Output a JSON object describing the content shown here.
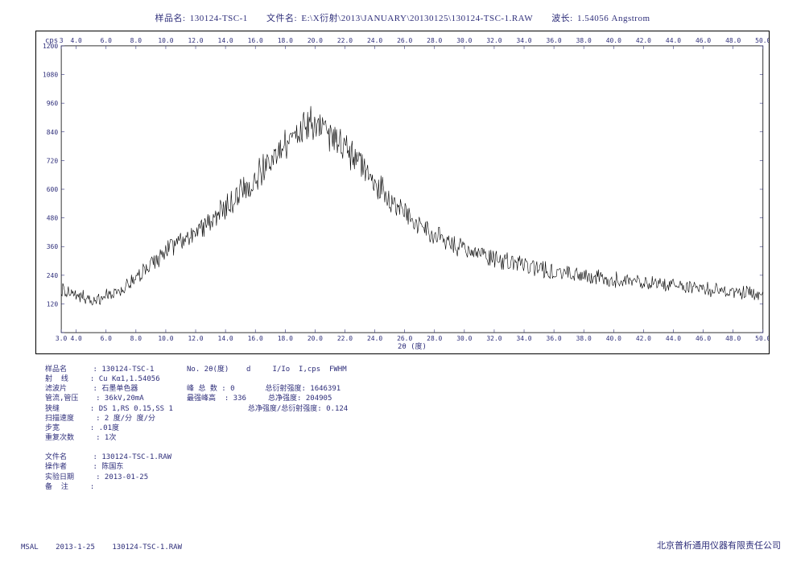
{
  "header": {
    "sample_lbl": "样品名:",
    "sample": "130124-TSC-1",
    "file_lbl": "文件名:",
    "file": "E:\\X衍射\\2013\\JANUARY\\20130125\\130124-TSC-1.RAW",
    "wave_lbl": "波长:",
    "wave": "1.54056 Angstrom"
  },
  "chart": {
    "type": "line",
    "background_color": "#ffffff",
    "frame_color": "#000000",
    "line_color": "#000000",
    "line_width": 0.6,
    "tick_color": "#2e2e7a",
    "grid_on": false,
    "cps_label": "cps",
    "x_axis_title": "2θ (度)",
    "xlim": [
      3.0,
      50.0
    ],
    "ylim": [
      0,
      1200
    ],
    "x_ticks": [
      3.0,
      4.0,
      6.0,
      8.0,
      10.0,
      12.0,
      14.0,
      16.0,
      18.0,
      20.0,
      22.0,
      24.0,
      26.0,
      28.0,
      30.0,
      32.0,
      34.0,
      36.0,
      38.0,
      40.0,
      42.0,
      44.0,
      46.0,
      48.0,
      50.0
    ],
    "x_tick_labels": [
      "3.0",
      "4.0",
      "6.0",
      "8.0",
      "10.0",
      "12.0",
      "14.0",
      "16.0",
      "18.0",
      "20.0",
      "22.0",
      "24.0",
      "26.0",
      "28.0",
      "30.0",
      "32.0",
      "34.0",
      "36.0",
      "38.0",
      "40.0",
      "42.0",
      "44.0",
      "46.0",
      "48.0",
      "50.0"
    ],
    "y_ticks": [
      0,
      120,
      240,
      360,
      480,
      600,
      720,
      840,
      960,
      1080,
      1200
    ],
    "y_tick_labels": [
      "",
      "120",
      "240",
      "360",
      "480",
      "600",
      "720",
      "840",
      "960",
      "1080",
      "1200"
    ],
    "x_ticks_top": [
      3,
      4.0,
      6.0,
      8.0,
      10.0,
      12.0,
      14.0,
      16.0,
      18.0,
      20.0,
      22.0,
      24.0,
      26.0,
      28.0,
      30.0,
      32.0,
      34.0,
      36.0,
      38.0,
      40.0,
      42.0,
      44.0,
      46.0,
      48.0,
      50.0
    ],
    "x_tick_labels_top": [
      "3",
      "4.0",
      "6.0",
      "8.0",
      "10.0",
      "12.0",
      "14.0",
      "16.0",
      "18.0",
      "20.0",
      "22.0",
      "24.0",
      "26.0",
      "28.0",
      "30.0",
      "32.0",
      "34.0",
      "36.0",
      "38.0",
      "40.0",
      "42.0",
      "44.0",
      "46.0",
      "48.0",
      "50.0"
    ],
    "baseline": [
      [
        3.0,
        180
      ],
      [
        3.5,
        160
      ],
      [
        4.0,
        150
      ],
      [
        5.0,
        140
      ],
      [
        6.0,
        150
      ],
      [
        7.0,
        180
      ],
      [
        8.0,
        220
      ],
      [
        9.0,
        280
      ],
      [
        10.0,
        340
      ],
      [
        11.0,
        380
      ],
      [
        12.0,
        420
      ],
      [
        13.0,
        470
      ],
      [
        14.0,
        520
      ],
      [
        15.0,
        580
      ],
      [
        16.0,
        650
      ],
      [
        17.0,
        720
      ],
      [
        18.0,
        790
      ],
      [
        19.0,
        840
      ],
      [
        19.5,
        860
      ],
      [
        20.0,
        870
      ],
      [
        20.5,
        860
      ],
      [
        21.0,
        830
      ],
      [
        22.0,
        770
      ],
      [
        23.0,
        700
      ],
      [
        24.0,
        630
      ],
      [
        25.0,
        560
      ],
      [
        26.0,
        500
      ],
      [
        27.0,
        450
      ],
      [
        28.0,
        410
      ],
      [
        29.0,
        380
      ],
      [
        30.0,
        350
      ],
      [
        31.0,
        330
      ],
      [
        32.0,
        310
      ],
      [
        33.0,
        295
      ],
      [
        34.0,
        280
      ],
      [
        35.0,
        268
      ],
      [
        36.0,
        255
      ],
      [
        37.0,
        245
      ],
      [
        38.0,
        235
      ],
      [
        39.0,
        228
      ],
      [
        40.0,
        220
      ],
      [
        41.0,
        214
      ],
      [
        42.0,
        208
      ],
      [
        43.0,
        202
      ],
      [
        44.0,
        196
      ],
      [
        45.0,
        190
      ],
      [
        46.0,
        184
      ],
      [
        47.0,
        178
      ],
      [
        48.0,
        172
      ],
      [
        49.0,
        165
      ],
      [
        50.0,
        158
      ]
    ],
    "noise_amplitude": 95,
    "noise_min": 35,
    "noise_secondary": 0.35,
    "samples_per_step": 18
  },
  "meta_left": [
    [
      "样品名",
      "130124-TSC-1"
    ],
    [
      "射  线",
      "Cu Kα1,1.54056"
    ],
    [
      "滤波片",
      "石墨单色器"
    ],
    [
      "管流,管压",
      "36kV,20mA"
    ],
    [
      "狭缝",
      "DS 1,RS 0.15,SS 1"
    ],
    [
      "扫描速度",
      "2 度/分 度/分"
    ],
    [
      "步宽",
      ".01度"
    ],
    [
      "重复次数",
      "1次"
    ],
    [
      "",
      ""
    ],
    [
      "文件名",
      "130124-TSC-1.RAW"
    ],
    [
      "操作者",
      "陈国东"
    ],
    [
      "实验日期",
      "2013-01-25"
    ],
    [
      "备  注",
      ""
    ]
  ],
  "meta_right": {
    "header": "No. 2θ(度)    d     I/Io  I,cps  FWHM",
    "rows": [
      [
        "峰 总 数",
        "0",
        "总衍射强度",
        "1646391"
      ],
      [
        "最强峰高",
        "336",
        "总净强度",
        "204905"
      ],
      [
        "",
        "",
        "总净强度/总衍射强度",
        "0.124"
      ]
    ]
  },
  "footer": {
    "left_a": "MSAL",
    "left_b": "2013-1-25",
    "left_c": "130124-TSC-1.RAW",
    "right": "北京普析通用仪器有限责任公司"
  }
}
